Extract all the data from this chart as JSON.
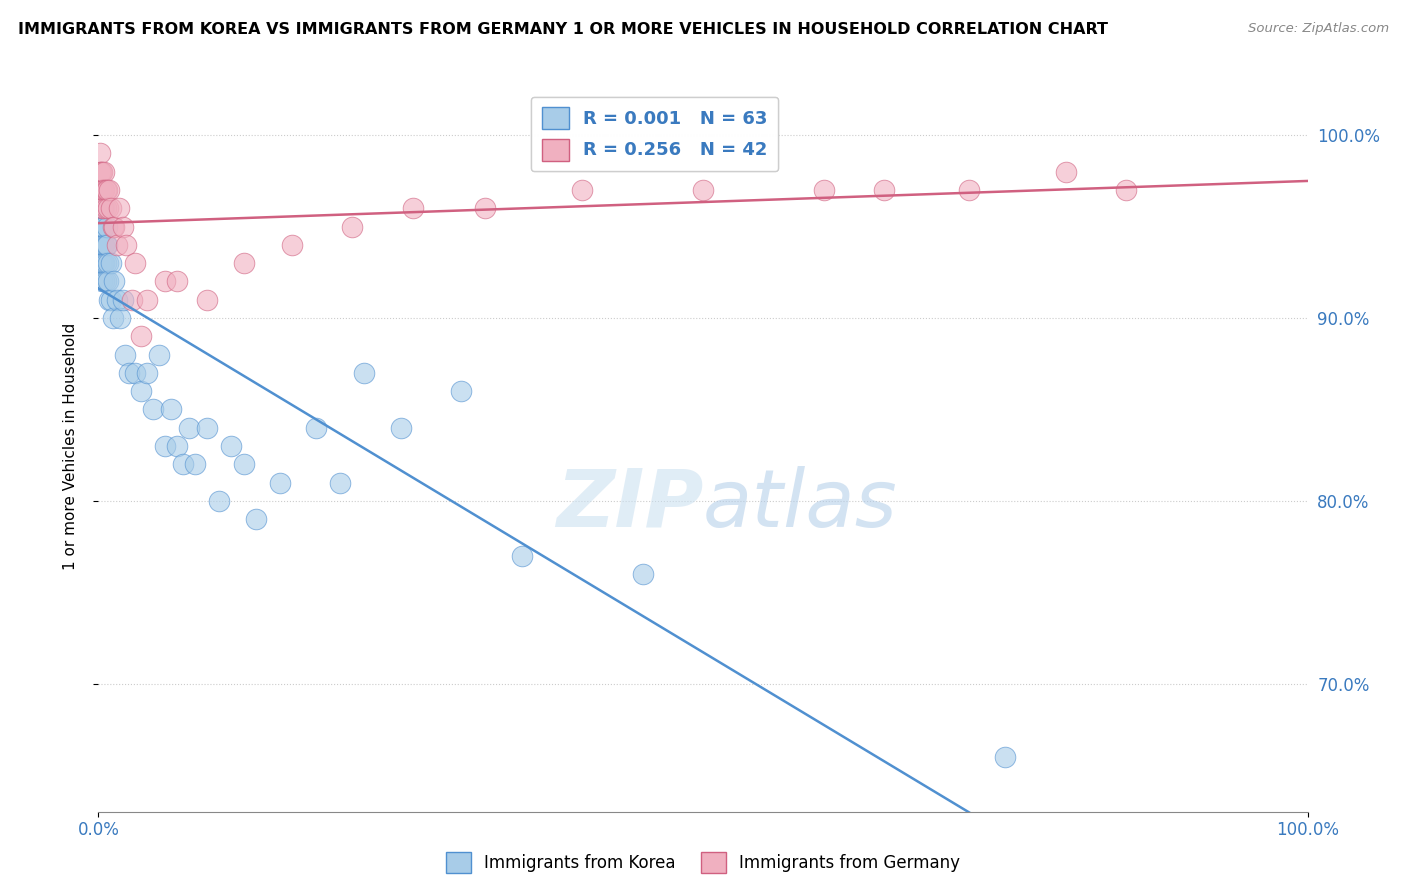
{
  "title": "IMMIGRANTS FROM KOREA VS IMMIGRANTS FROM GERMANY 1 OR MORE VEHICLES IN HOUSEHOLD CORRELATION CHART",
  "source": "Source: ZipAtlas.com",
  "ylabel": "1 or more Vehicles in Household",
  "legend_labels": [
    "Immigrants from Korea",
    "Immigrants from Germany"
  ],
  "r_korea": 0.001,
  "n_korea": 63,
  "r_germany": 0.256,
  "n_germany": 42,
  "color_korea": "#a8cce8",
  "color_germany": "#f0b0c0",
  "trendline_korea": "#5090d0",
  "trendline_germany": "#d06080",
  "background": "#ffffff",
  "korea_x": [
    0.001,
    0.001,
    0.001,
    0.002,
    0.002,
    0.002,
    0.002,
    0.002,
    0.003,
    0.003,
    0.003,
    0.003,
    0.003,
    0.004,
    0.004,
    0.004,
    0.005,
    0.005,
    0.005,
    0.005,
    0.005,
    0.006,
    0.006,
    0.006,
    0.007,
    0.007,
    0.008,
    0.008,
    0.009,
    0.01,
    0.01,
    0.012,
    0.013,
    0.015,
    0.018,
    0.02,
    0.022,
    0.025,
    0.03,
    0.035,
    0.04,
    0.045,
    0.05,
    0.055,
    0.06,
    0.065,
    0.07,
    0.075,
    0.08,
    0.09,
    0.1,
    0.11,
    0.12,
    0.13,
    0.15,
    0.18,
    0.2,
    0.22,
    0.25,
    0.3,
    0.35,
    0.45,
    0.75
  ],
  "korea_y": [
    0.97,
    0.95,
    0.94,
    0.97,
    0.96,
    0.95,
    0.94,
    0.93,
    0.96,
    0.95,
    0.94,
    0.93,
    0.92,
    0.95,
    0.94,
    0.93,
    0.96,
    0.95,
    0.94,
    0.93,
    0.92,
    0.94,
    0.93,
    0.92,
    0.95,
    0.94,
    0.93,
    0.92,
    0.91,
    0.93,
    0.91,
    0.9,
    0.92,
    0.91,
    0.9,
    0.91,
    0.88,
    0.87,
    0.87,
    0.86,
    0.87,
    0.85,
    0.88,
    0.83,
    0.85,
    0.83,
    0.82,
    0.84,
    0.82,
    0.84,
    0.8,
    0.83,
    0.82,
    0.79,
    0.81,
    0.84,
    0.81,
    0.87,
    0.84,
    0.86,
    0.77,
    0.76,
    0.66
  ],
  "germany_x": [
    0.001,
    0.001,
    0.002,
    0.002,
    0.003,
    0.003,
    0.003,
    0.004,
    0.004,
    0.005,
    0.005,
    0.006,
    0.006,
    0.007,
    0.008,
    0.009,
    0.01,
    0.012,
    0.013,
    0.015,
    0.017,
    0.02,
    0.023,
    0.028,
    0.03,
    0.035,
    0.04,
    0.055,
    0.065,
    0.09,
    0.12,
    0.16,
    0.21,
    0.26,
    0.32,
    0.4,
    0.5,
    0.6,
    0.65,
    0.72,
    0.8,
    0.85
  ],
  "germany_y": [
    0.99,
    0.98,
    0.98,
    0.97,
    0.98,
    0.97,
    0.96,
    0.97,
    0.96,
    0.98,
    0.97,
    0.97,
    0.96,
    0.97,
    0.96,
    0.97,
    0.96,
    0.95,
    0.95,
    0.94,
    0.96,
    0.95,
    0.94,
    0.91,
    0.93,
    0.89,
    0.91,
    0.92,
    0.92,
    0.91,
    0.93,
    0.94,
    0.95,
    0.96,
    0.96,
    0.97,
    0.97,
    0.97,
    0.97,
    0.97,
    0.98,
    0.97
  ],
  "xlim": [
    0.0,
    1.0
  ],
  "ylim": [
    0.63,
    1.03
  ],
  "ytick_vals": [
    0.7,
    0.8,
    0.9,
    1.0
  ],
  "ytick_labels": [
    "70.0%",
    "80.0%",
    "90.0%",
    "100.0%"
  ],
  "xtick_vals": [
    0.0,
    1.0
  ],
  "xtick_labels": [
    "0.0%",
    "100.0%"
  ]
}
